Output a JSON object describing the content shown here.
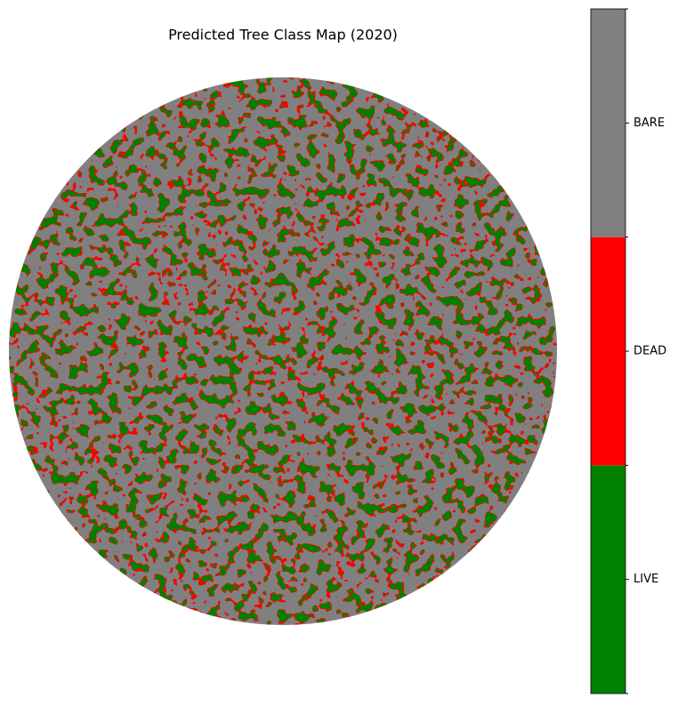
{
  "chart_data": {
    "type": "image",
    "title": "Predicted Tree Class Map (2020)",
    "categories": [
      "LIVE",
      "DEAD",
      "BARE"
    ],
    "colors": [
      "#008000",
      "#ff0000",
      "#808080"
    ]
  }
}
